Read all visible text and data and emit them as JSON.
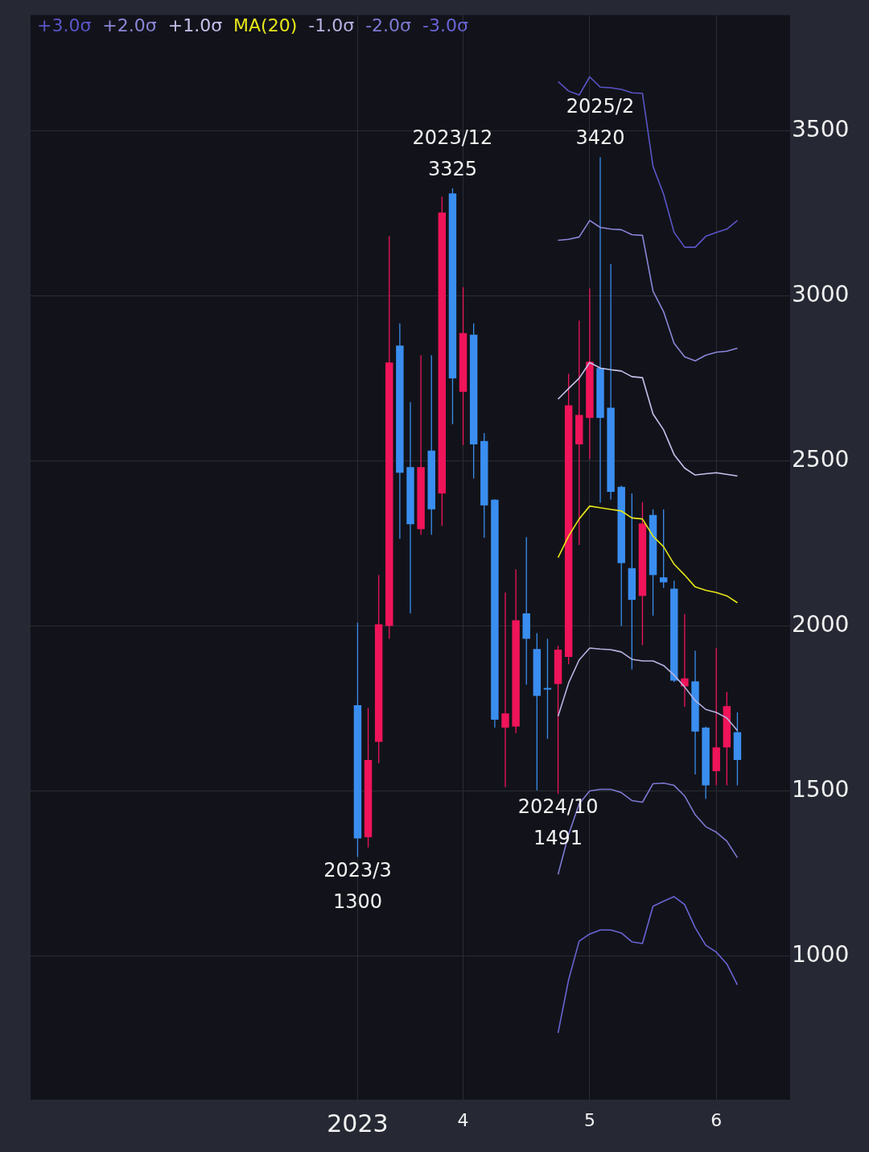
{
  "chart_data": {
    "type": "candlestick",
    "x": [
      "2023-03",
      "2023-04",
      "2023-05",
      "2023-06",
      "2023-07",
      "2023-08",
      "2023-09",
      "2023-10",
      "2023-11",
      "2023-12",
      "2024-01",
      "2024-02",
      "2024-03",
      "2024-04",
      "2024-05",
      "2024-06",
      "2024-07",
      "2024-08",
      "2024-09",
      "2024-10",
      "2024-11",
      "2024-12",
      "2025-01",
      "2025-02",
      "2025-03",
      "2025-04",
      "2025-05",
      "2025-06",
      "2025-07",
      "2025-08",
      "2025-09",
      "2025-10",
      "2025-11",
      "2025-12",
      "2026-01",
      "2026-02",
      "2026-03"
    ],
    "ohlc": [
      [
        1760,
        2010,
        1300,
        1356
      ],
      [
        1360,
        1752,
        1329,
        1594
      ],
      [
        1649,
        2154,
        1584,
        2005
      ],
      [
        2000,
        3180,
        1961,
        2798
      ],
      [
        2849,
        2916,
        2264,
        2464
      ],
      [
        2481,
        2678,
        2038,
        2308
      ],
      [
        2293,
        2820,
        2276,
        2481
      ],
      [
        2531,
        2820,
        2276,
        2353
      ],
      [
        2401,
        3300,
        2303,
        3252
      ],
      [
        3310,
        3325,
        2611,
        2750
      ],
      [
        2709,
        3026,
        2548,
        2887
      ],
      [
        2882,
        2916,
        2447,
        2550
      ],
      [
        2560,
        2584,
        2267,
        2365
      ],
      [
        2382,
        2384,
        1692,
        1716
      ],
      [
        1692,
        2101,
        1512,
        1735
      ],
      [
        1695,
        2171,
        1675,
        2017
      ],
      [
        2038,
        2269,
        1822,
        1961
      ],
      [
        1930,
        1978,
        1502,
        1788
      ],
      [
        1812,
        1961,
        1658,
        1808
      ],
      [
        1824,
        1940,
        1491,
        1928
      ],
      [
        1906,
        2764,
        1884,
        2668
      ],
      [
        2550,
        2925,
        2245,
        2639
      ],
      [
        2630,
        3022,
        2505,
        2800
      ],
      [
        2781,
        3420,
        2373,
        2630
      ],
      [
        2661,
        3096,
        2382,
        2406
      ],
      [
        2421,
        2425,
        2000,
        2190
      ],
      [
        2175,
        2401,
        1868,
        2079
      ],
      [
        2091,
        2375,
        1942,
        2310
      ],
      [
        2336,
        2353,
        2031,
        2154
      ],
      [
        2147,
        2353,
        2115,
        2132
      ],
      [
        2113,
        2137,
        1830,
        1834
      ],
      [
        1817,
        2036,
        1755,
        1841
      ],
      [
        1832,
        1925,
        1550,
        1680
      ],
      [
        1692,
        1695,
        1476,
        1517
      ],
      [
        1560,
        1933,
        1517,
        1632
      ],
      [
        1632,
        1800,
        1517,
        1757
      ],
      [
        1678,
        1738,
        1517,
        1594
      ]
    ],
    "colors": [
      "#3a8ef0",
      "#f0145a",
      "#f0145a",
      "#f0145a",
      "#3a8ef0",
      "#3a8ef0",
      "#f0145a",
      "#3a8ef0",
      "#f0145a",
      "#3a8ef0",
      "#f0145a",
      "#3a8ef0",
      "#3a8ef0",
      "#3a8ef0",
      "#f0145a",
      "#f0145a",
      "#3a8ef0",
      "#3a8ef0",
      "#3a8ef0",
      "#f0145a",
      "#f0145a",
      "#f0145a",
      "#f0145a",
      "#3a8ef0",
      "#3a8ef0",
      "#3a8ef0",
      "#3a8ef0",
      "#f0145a",
      "#3a8ef0",
      "#3a8ef0",
      "#3a8ef0",
      "#f0145a",
      "#3a8ef0",
      "#3a8ef0",
      "#f0145a",
      "#f0145a",
      "#3a8ef0"
    ],
    "series": [
      {
        "name": "+3.0σ",
        "type": "line",
        "color": "#5b55c8",
        "values": [
          null,
          null,
          null,
          null,
          null,
          null,
          null,
          null,
          null,
          null,
          null,
          null,
          null,
          null,
          null,
          null,
          null,
          null,
          null,
          3649,
          3620,
          3608,
          3663,
          3632,
          3630,
          3625,
          3615,
          3613,
          3392,
          3308,
          3192,
          3147,
          3147,
          3180,
          3192,
          3202,
          3228
        ]
      },
      {
        "name": "+2.0σ",
        "type": "line",
        "color": "#8a86d8",
        "values": [
          null,
          null,
          null,
          null,
          null,
          null,
          null,
          null,
          null,
          null,
          null,
          null,
          null,
          null,
          null,
          null,
          null,
          null,
          null,
          3168,
          3171,
          3178,
          3228,
          3207,
          3202,
          3200,
          3185,
          3183,
          3014,
          2952,
          2856,
          2815,
          2803,
          2820,
          2829,
          2832,
          2841
        ]
      },
      {
        "name": "+1.0σ",
        "type": "line",
        "color": "#c4c1ec",
        "values": [
          null,
          null,
          null,
          null,
          null,
          null,
          null,
          null,
          null,
          null,
          null,
          null,
          null,
          null,
          null,
          null,
          null,
          null,
          null,
          2687,
          2719,
          2750,
          2798,
          2781,
          2776,
          2772,
          2755,
          2752,
          2642,
          2594,
          2519,
          2478,
          2457,
          2461,
          2464,
          2459,
          2454
        ]
      },
      {
        "name": "MA(20)",
        "type": "line",
        "color": "#e6e619",
        "values": [
          null,
          null,
          null,
          null,
          null,
          null,
          null,
          null,
          null,
          null,
          null,
          null,
          null,
          null,
          null,
          null,
          null,
          null,
          null,
          2207,
          2272,
          2324,
          2363,
          2358,
          2353,
          2348,
          2327,
          2324,
          2272,
          2240,
          2187,
          2154,
          2118,
          2108,
          2101,
          2091,
          2070
        ]
      },
      {
        "name": "-1.0σ",
        "type": "line",
        "color": "#b6b3e2",
        "values": [
          null,
          null,
          null,
          null,
          null,
          null,
          null,
          null,
          null,
          null,
          null,
          null,
          null,
          null,
          null,
          null,
          null,
          null,
          null,
          1726,
          1827,
          1897,
          1933,
          1930,
          1928,
          1921,
          1899,
          1894,
          1894,
          1880,
          1851,
          1815,
          1774,
          1747,
          1738,
          1721,
          1683
        ]
      },
      {
        "name": "-2.0σ",
        "type": "line",
        "color": "#7d79d2",
        "values": [
          null,
          null,
          null,
          null,
          null,
          null,
          null,
          null,
          null,
          null,
          null,
          null,
          null,
          null,
          null,
          null,
          null,
          null,
          null,
          1247,
          1368,
          1461,
          1500,
          1505,
          1505,
          1495,
          1471,
          1466,
          1522,
          1524,
          1517,
          1485,
          1428,
          1392,
          1375,
          1348,
          1298
        ]
      },
      {
        "name": "-3.0σ",
        "type": "line",
        "color": "#6a64d6",
        "values": [
          null,
          null,
          null,
          null,
          null,
          null,
          null,
          null,
          null,
          null,
          null,
          null,
          null,
          null,
          null,
          null,
          null,
          null,
          null,
          767,
          928,
          1045,
          1067,
          1079,
          1079,
          1070,
          1043,
          1038,
          1151,
          1166,
          1180,
          1156,
          1086,
          1033,
          1012,
          976,
          913
        ]
      }
    ],
    "xlim": [
      "2020-08",
      "2026-08"
    ],
    "xticks": [
      {
        "value": "2023-03",
        "label": "2023"
      },
      {
        "value": "2024-01",
        "label": "4"
      },
      {
        "value": "2025-01",
        "label": "5"
      },
      {
        "value": "2026-01",
        "label": "6"
      }
    ],
    "ylim": [
      565,
      3850
    ],
    "yticks": [
      1000,
      1500,
      2000,
      2500,
      3000,
      3500
    ],
    "grid": true,
    "legend": "top left",
    "annotations": [
      {
        "text": "2023/3\n1300",
        "x": "2023-03",
        "y": 1300
      },
      {
        "text": "2023/12\n3325",
        "x": "2023-12",
        "y": 3325
      },
      {
        "text": "2024/10\n1491",
        "x": "2024-10",
        "y": 1491
      },
      {
        "text": "2025/2\n3420",
        "x": "2025-02",
        "y": 3420
      }
    ]
  }
}
